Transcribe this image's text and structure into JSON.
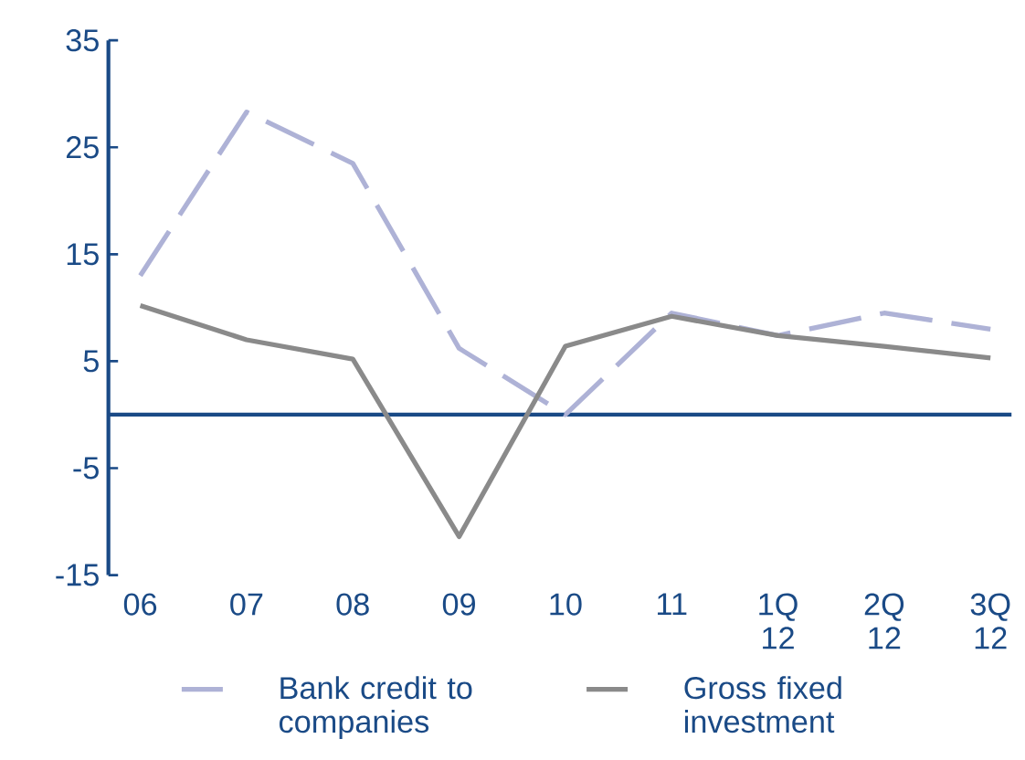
{
  "chart_data": {
    "type": "line",
    "categories": [
      "06",
      "07",
      "08",
      "09",
      "10",
      "11",
      "1Q 12",
      "2Q 12",
      "3Q 12"
    ],
    "series": [
      {
        "name": "Bank credit to companies",
        "color": "#aeb2d6",
        "line_style": "dashed",
        "values": [
          13,
          28.3,
          23.5,
          6.2,
          0,
          9.5,
          7.4,
          9.5,
          8
        ]
      },
      {
        "name": "Gross fixed investment",
        "color": "#8a8a8a",
        "line_style": "solid",
        "values": [
          10.2,
          7,
          5.2,
          -11.4,
          6.4,
          9.2,
          7.4,
          6.4,
          5.3
        ]
      }
    ],
    "ylim": [
      -15,
      35
    ],
    "yticks": [
      -15,
      -5,
      5,
      15,
      25,
      35
    ],
    "grid": false,
    "legend": "bottom",
    "marker": "none",
    "ref_lines": [
      {
        "axis": "y",
        "value": 0,
        "color": "#1a4a86"
      }
    ]
  }
}
